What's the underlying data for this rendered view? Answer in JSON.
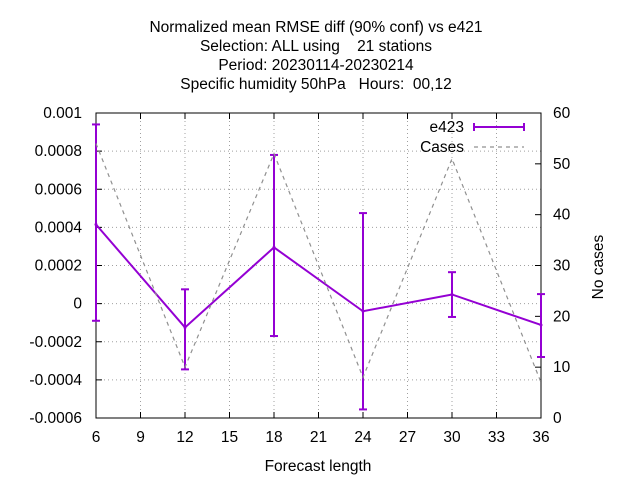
{
  "chart_data": {
    "type": "line",
    "title_lines": [
      "Normalized mean RMSE diff (90% conf) vs e421",
      "Selection: ALL using    21 stations",
      "Period: 20230114-20230214",
      "Specific humidity 50hPa   Hours:  00,12"
    ],
    "xlabel": "Forecast length",
    "ylabel": "",
    "y2label": "No cases",
    "xlim": [
      6,
      36
    ],
    "ylim": [
      -0.0006,
      0.001
    ],
    "y2lim": [
      0,
      60
    ],
    "x_ticks": [
      "6",
      "9",
      "12",
      "15",
      "18",
      "21",
      "24",
      "27",
      "30",
      "33",
      "36"
    ],
    "y_ticks": [
      "-0.0006",
      "-0.0004",
      "-0.0002",
      "0",
      "0.0002",
      "0.0004",
      "0.0006",
      "0.0008",
      "0.001"
    ],
    "y2_ticks": [
      "0",
      "10",
      "20",
      "30",
      "40",
      "50",
      "60"
    ],
    "grid": true,
    "legend_position": "top-right",
    "series": [
      {
        "name": "e423",
        "axis": "left",
        "color": "#9400d3",
        "style": "errorbars",
        "x": [
          6,
          12,
          18,
          24,
          30,
          36
        ],
        "y": [
          0.000415,
          -0.000125,
          0.000295,
          -4e-05,
          4.8e-05,
          -0.000112
        ],
        "err_low": [
          -9e-05,
          -0.000345,
          -0.00017,
          -0.000555,
          -7e-05,
          -0.00028
        ],
        "err_high": [
          0.00094,
          7.5e-05,
          0.00078,
          0.000475,
          0.000165,
          5e-05
        ]
      },
      {
        "name": "Cases",
        "axis": "right",
        "color": "#909090",
        "style": "dashed",
        "x": [
          6,
          12,
          18,
          24,
          30,
          36
        ],
        "y": [
          54,
          10,
          52,
          8,
          51,
          7
        ]
      }
    ]
  }
}
